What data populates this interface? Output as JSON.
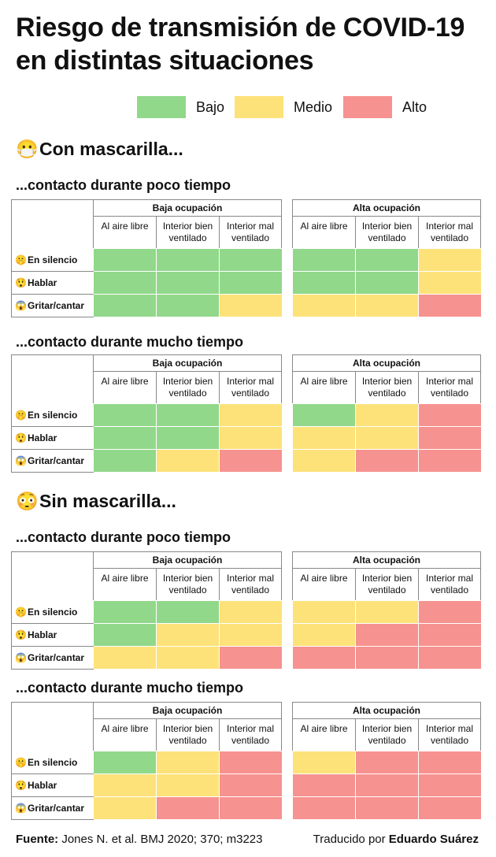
{
  "title": "Riesgo de transmisión de COVID-19 en distintas situaciones",
  "legend": [
    {
      "label": "Bajo",
      "color": "#92d88b"
    },
    {
      "label": "Medio",
      "color": "#fde27a"
    },
    {
      "label": "Alto",
      "color": "#f6928f"
    }
  ],
  "sections": [
    {
      "emoji": "😷",
      "title": "Con mascarilla..."
    },
    {
      "emoji": "😳",
      "title": "Sin mascarilla..."
    }
  ],
  "duration_labels": [
    "...contacto durante poco tiempo",
    "...contacto durante mucho tiempo"
  ],
  "groups": [
    "Baja ocupación",
    "Alta ocupación"
  ],
  "columns": [
    "Al aire libre",
    "Interior bien ventilado",
    "Interior mal ventilado"
  ],
  "rows": [
    {
      "emoji": "🤫",
      "label": "En silencio"
    },
    {
      "emoji": "😲",
      "label": "Hablar"
    },
    {
      "emoji": "😱",
      "label": "Gritar/cantar"
    }
  ],
  "chart_data": {
    "type": "heatmap",
    "title": "Riesgo de transmisión de COVID-19 en distintas situaciones",
    "levels": [
      "Bajo",
      "Medio",
      "Alto"
    ],
    "legend_position": "top",
    "panels": [
      {
        "mask": "Con mascarilla...",
        "duration": "...contacto durante poco tiempo",
        "baja_ocupacion": [
          [
            "Bajo",
            "Bajo",
            "Bajo"
          ],
          [
            "Bajo",
            "Bajo",
            "Bajo"
          ],
          [
            "Bajo",
            "Bajo",
            "Medio"
          ]
        ],
        "alta_ocupacion": [
          [
            "Bajo",
            "Bajo",
            "Medio"
          ],
          [
            "Bajo",
            "Bajo",
            "Medio"
          ],
          [
            "Medio",
            "Medio",
            "Alto"
          ]
        ]
      },
      {
        "mask": "Con mascarilla...",
        "duration": "...contacto durante mucho tiempo",
        "baja_ocupacion": [
          [
            "Bajo",
            "Bajo",
            "Medio"
          ],
          [
            "Bajo",
            "Bajo",
            "Medio"
          ],
          [
            "Bajo",
            "Medio",
            "Alto"
          ]
        ],
        "alta_ocupacion": [
          [
            "Bajo",
            "Medio",
            "Alto"
          ],
          [
            "Medio",
            "Medio",
            "Alto"
          ],
          [
            "Medio",
            "Alto",
            "Alto"
          ]
        ]
      },
      {
        "mask": "Sin mascarilla...",
        "duration": "...contacto durante poco tiempo",
        "baja_ocupacion": [
          [
            "Bajo",
            "Bajo",
            "Medio"
          ],
          [
            "Bajo",
            "Medio",
            "Medio"
          ],
          [
            "Medio",
            "Medio",
            "Alto"
          ]
        ],
        "alta_ocupacion": [
          [
            "Medio",
            "Medio",
            "Alto"
          ],
          [
            "Medio",
            "Alto",
            "Alto"
          ],
          [
            "Alto",
            "Alto",
            "Alto"
          ]
        ]
      },
      {
        "mask": "Sin mascarilla...",
        "duration": "...contacto durante mucho tiempo",
        "baja_ocupacion": [
          [
            "Bajo",
            "Medio",
            "Alto"
          ],
          [
            "Medio",
            "Medio",
            "Alto"
          ],
          [
            "Medio",
            "Alto",
            "Alto"
          ]
        ],
        "alta_ocupacion": [
          [
            "Medio",
            "Alto",
            "Alto"
          ],
          [
            "Alto",
            "Alto",
            "Alto"
          ],
          [
            "Alto",
            "Alto",
            "Alto"
          ]
        ]
      }
    ]
  },
  "footer": {
    "source_label": "Fuente:",
    "source_text": "Jones N. et al. BMJ 2020; 370; m3223",
    "translated_label": "Traducido por",
    "translator": "Eduardo Suárez"
  }
}
